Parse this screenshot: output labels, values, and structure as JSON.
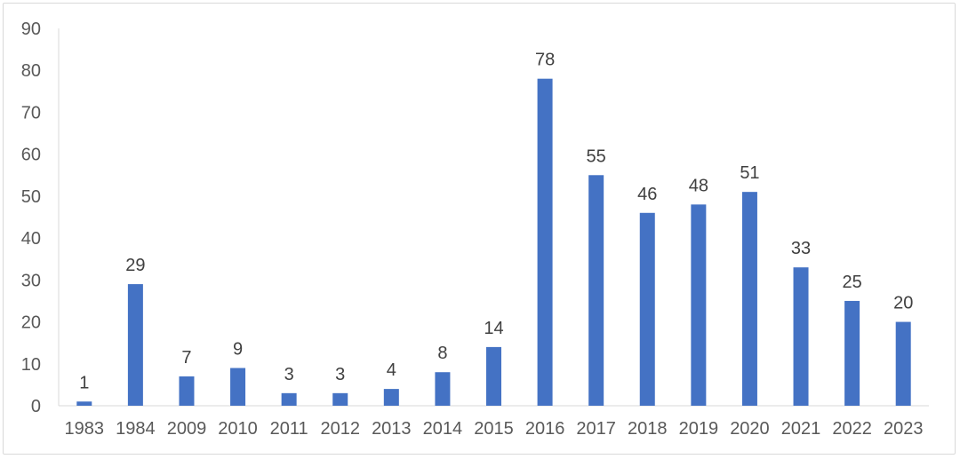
{
  "chart_data": {
    "type": "bar",
    "title": "",
    "xlabel": "",
    "ylabel": "",
    "categories": [
      "1983",
      "1984",
      "2009",
      "2010",
      "2011",
      "2012",
      "2013",
      "2014",
      "2015",
      "2016",
      "2017",
      "2018",
      "2019",
      "2020",
      "2021",
      "2022",
      "2023"
    ],
    "values": [
      1,
      29,
      7,
      9,
      3,
      3,
      4,
      8,
      14,
      78,
      55,
      46,
      48,
      51,
      33,
      25,
      20
    ],
    "ylim": [
      0,
      90
    ],
    "yticks": [
      0,
      10,
      20,
      30,
      40,
      50,
      60,
      70,
      80,
      90
    ],
    "bar_color": "#4472C4",
    "data_labels": true,
    "grid": false,
    "legend": "none"
  }
}
